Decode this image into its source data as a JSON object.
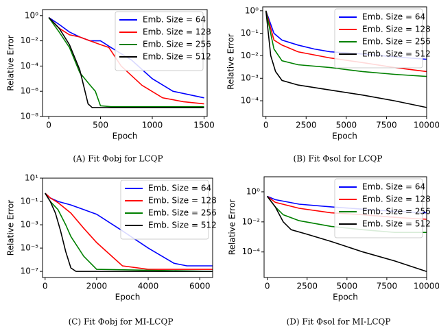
{
  "chart_data": [
    {
      "type": "line",
      "caption": "(A) Fit Φobj for LCQP",
      "x_label": "Epoch",
      "y_label": "Relative Error",
      "log_y": true,
      "legend": "upper right",
      "xlim": [
        -60,
        1530
      ],
      "ylim": [
        1e-08,
        3
      ],
      "xticks": [
        0,
        500,
        1000,
        1500
      ],
      "yticks": [
        {
          "value": 1,
          "label": "10⁰"
        },
        {
          "value": 0.01,
          "label": "10⁻²"
        },
        {
          "value": 0.0001,
          "label": "10⁻⁴"
        },
        {
          "value": 1e-06,
          "label": "10⁻⁶"
        },
        {
          "value": 1e-08,
          "label": "10⁻⁸"
        }
      ],
      "series": [
        {
          "name": "Emb. Size = 64",
          "color": "#0000ff",
          "x": [
            0,
            100,
            200,
            300,
            400,
            500,
            600,
            800,
            1000,
            1200,
            1500
          ],
          "values": [
            0.7,
            0.2,
            0.05,
            0.02,
            0.01,
            0.01,
            0.003,
            0.0003,
            1e-05,
            1e-06,
            3e-07
          ]
        },
        {
          "name": "Emb. Size = 128",
          "color": "#ff0000",
          "x": [
            0,
            100,
            200,
            300,
            400,
            500,
            580,
            700,
            900,
            1100,
            1300,
            1500
          ],
          "values": [
            0.7,
            0.1,
            0.03,
            0.02,
            0.01,
            0.005,
            0.003,
            0.0001,
            3e-06,
            3e-07,
            1.5e-07,
            1e-07
          ]
        },
        {
          "name": "Emb. Size = 256",
          "color": "#008000",
          "x": [
            0,
            100,
            200,
            300,
            400,
            450,
            500,
            600,
            1000,
            1500
          ],
          "values": [
            0.7,
            0.05,
            0.003,
            3e-05,
            3e-06,
            1e-06,
            7e-08,
            6e-08,
            6e-08,
            6e-08
          ]
        },
        {
          "name": "Emb. Size = 512",
          "color": "#000000",
          "x": [
            0,
            100,
            200,
            300,
            380,
            420,
            500,
            1000,
            1500
          ],
          "values": [
            0.7,
            0.1,
            0.005,
            5e-05,
            1e-07,
            5e-08,
            5e-08,
            5e-08,
            5e-08
          ]
        }
      ]
    },
    {
      "type": "line",
      "caption": "(B) Fit Φsol for LCQP",
      "x_label": "Epoch",
      "y_label": "Relative Error",
      "log_y": true,
      "legend": "upper right",
      "xlim": [
        -200,
        10000
      ],
      "ylim": [
        2e-05,
        1.5
      ],
      "xticks": [
        0,
        2500,
        5000,
        7500,
        10000
      ],
      "yticks": [
        {
          "value": 1,
          "label": "10⁰"
        },
        {
          "value": 0.1,
          "label": "10⁻¹"
        },
        {
          "value": 0.01,
          "label": "10⁻²"
        },
        {
          "value": 0.001,
          "label": "10⁻³"
        },
        {
          "value": 0.0001,
          "label": "10⁻⁴"
        }
      ],
      "series": [
        {
          "name": "Emb. Size = 64",
          "color": "#0000ff",
          "x": [
            0,
            500,
            1000,
            2000,
            3000,
            4000,
            6000,
            8000,
            10000
          ],
          "values": [
            1,
            0.1,
            0.05,
            0.03,
            0.02,
            0.015,
            0.012,
            0.009,
            0.007
          ]
        },
        {
          "name": "Emb. Size = 128",
          "color": "#ff0000",
          "x": [
            0,
            500,
            1000,
            2000,
            4000,
            6000,
            8000,
            10000
          ],
          "values": [
            1,
            0.05,
            0.03,
            0.015,
            0.008,
            0.005,
            0.003,
            0.002
          ]
        },
        {
          "name": "Emb. Size = 256",
          "color": "#008000",
          "x": [
            0,
            500,
            1000,
            2000,
            4000,
            6000,
            8000,
            10000
          ],
          "values": [
            1,
            0.02,
            0.006,
            0.004,
            0.003,
            0.002,
            0.0015,
            0.0012
          ]
        },
        {
          "name": "Emb. Size = 512",
          "color": "#000000",
          "x": [
            0,
            300,
            600,
            1000,
            2000,
            4000,
            6000,
            8000,
            10000
          ],
          "values": [
            1,
            0.01,
            0.002,
            0.0008,
            0.0005,
            0.0003,
            0.00018,
            0.0001,
            5e-05
          ]
        }
      ]
    },
    {
      "type": "line",
      "caption": "(C) Fit Φobj for MI-LCQP",
      "x_label": "Epoch",
      "y_label": "Relative Error",
      "log_y": true,
      "legend": "upper right",
      "xlim": [
        -100,
        6500
      ],
      "ylim": [
        3e-08,
        10
      ],
      "xticks": [
        0,
        2000,
        4000,
        6000
      ],
      "yticks": [
        {
          "value": 10,
          "label": "10¹"
        },
        {
          "value": 0.1,
          "label": "10⁻¹"
        },
        {
          "value": 0.001,
          "label": "10⁻³"
        },
        {
          "value": 1e-05,
          "label": "10⁻⁵"
        },
        {
          "value": 1e-07,
          "label": "10⁻⁷"
        }
      ],
      "series": [
        {
          "name": "Emb. Size = 64",
          "color": "#0000ff",
          "x": [
            0,
            200,
            500,
            1000,
            1500,
            2000,
            3000,
            4000,
            5000,
            5500,
            6000,
            6500
          ],
          "values": [
            0.5,
            0.2,
            0.1,
            0.05,
            0.02,
            0.008,
            0.0003,
            1e-05,
            5e-07,
            3e-07,
            3e-07,
            3e-07
          ]
        },
        {
          "name": "Emb. Size = 128",
          "color": "#ff0000",
          "x": [
            0,
            200,
            500,
            1000,
            1500,
            2000,
            2500,
            3000,
            4000,
            6500
          ],
          "values": [
            0.5,
            0.2,
            0.08,
            0.01,
            0.0005,
            3e-05,
            3e-06,
            3e-07,
            1.5e-07,
            1.5e-07
          ]
        },
        {
          "name": "Emb. Size = 256",
          "color": "#008000",
          "x": [
            0,
            200,
            500,
            800,
            1000,
            1500,
            2000,
            6500
          ],
          "values": [
            0.5,
            0.1,
            0.02,
            0.001,
            0.0001,
            2e-06,
            1.5e-07,
            1e-07
          ]
        },
        {
          "name": "Emb. Size = 512",
          "color": "#000000",
          "x": [
            0,
            200,
            400,
            600,
            800,
            1000,
            1200,
            6500
          ],
          "values": [
            0.5,
            0.1,
            0.01,
            0.0003,
            5e-06,
            2e-07,
            1e-07,
            1e-07
          ]
        }
      ]
    },
    {
      "type": "line",
      "caption": "(D) Fit Φsol for MI-LCQP",
      "x_label": "Epoch",
      "y_label": "Relative Error",
      "log_y": true,
      "legend": "upper right",
      "xlim": [
        -200,
        10000
      ],
      "ylim": [
        2e-06,
        10
      ],
      "xticks": [
        0,
        2500,
        5000,
        7500,
        10000
      ],
      "yticks": [
        {
          "value": 1,
          "label": "10⁰"
        },
        {
          "value": 0.01,
          "label": "10⁻²"
        },
        {
          "value": 0.0001,
          "label": "10⁻⁴"
        }
      ],
      "series": [
        {
          "name": "Emb. Size = 64",
          "color": "#0000ff",
          "x": [
            0,
            500,
            2000,
            4000,
            6000,
            8000,
            10000
          ],
          "values": [
            0.5,
            0.3,
            0.15,
            0.1,
            0.07,
            0.05,
            0.04
          ]
        },
        {
          "name": "Emb. Size = 128",
          "color": "#ff0000",
          "x": [
            0,
            500,
            2000,
            4000,
            6000,
            8000,
            10000
          ],
          "values": [
            0.5,
            0.2,
            0.08,
            0.04,
            0.03,
            0.02,
            0.015
          ]
        },
        {
          "name": "Emb. Size = 256",
          "color": "#008000",
          "x": [
            0,
            500,
            1000,
            2000,
            4000,
            6000,
            8000,
            10000
          ],
          "values": [
            0.5,
            0.1,
            0.03,
            0.012,
            0.005,
            0.003,
            0.002,
            0.002
          ]
        },
        {
          "name": "Emb. Size = 512",
          "color": "#000000",
          "x": [
            0,
            500,
            1000,
            1500,
            2500,
            4000,
            6000,
            8000,
            10000
          ],
          "values": [
            0.5,
            0.1,
            0.01,
            0.003,
            0.0015,
            0.0005,
            0.0001,
            2.5e-05,
            5e-06
          ]
        }
      ]
    }
  ]
}
